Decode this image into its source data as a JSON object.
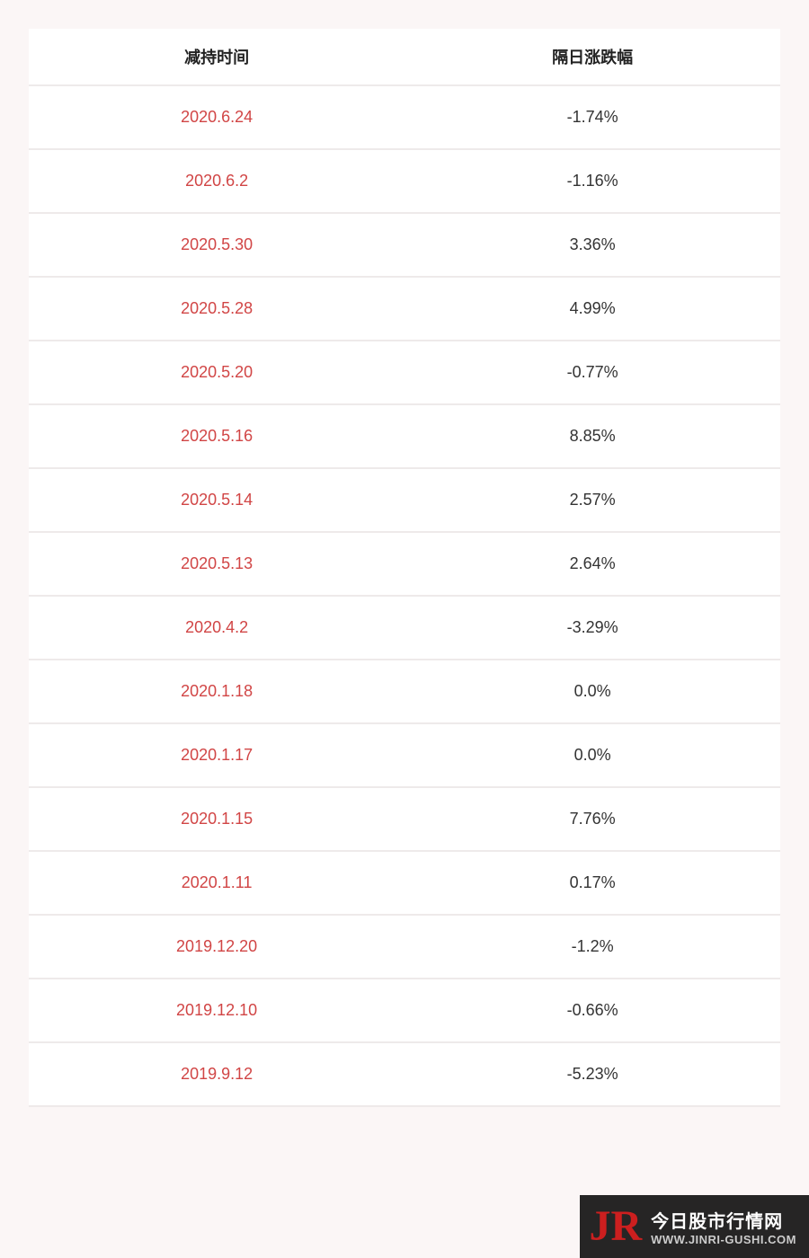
{
  "table": {
    "columns": [
      "减持时间",
      "隔日涨跌幅"
    ],
    "rows": [
      [
        "2020.6.24",
        "-1.74%"
      ],
      [
        "2020.6.2",
        "-1.16%"
      ],
      [
        "2020.5.30",
        "3.36%"
      ],
      [
        "2020.5.28",
        "4.99%"
      ],
      [
        "2020.5.20",
        "-0.77%"
      ],
      [
        "2020.5.16",
        "8.85%"
      ],
      [
        "2020.5.14",
        "2.57%"
      ],
      [
        "2020.5.13",
        "2.64%"
      ],
      [
        "2020.4.2",
        "-3.29%"
      ],
      [
        "2020.1.18",
        "0.0%"
      ],
      [
        "2020.1.17",
        "0.0%"
      ],
      [
        "2020.1.15",
        "7.76%"
      ],
      [
        "2020.1.11",
        "0.17%"
      ],
      [
        "2019.12.20",
        "-1.2%"
      ],
      [
        "2019.12.10",
        "-0.66%"
      ],
      [
        "2019.9.12",
        "-5.23%"
      ]
    ],
    "styling": {
      "background_color": "#fbf6f6",
      "cell_bg_color": "#ffffff",
      "header_text_color": "#222222",
      "date_text_color": "#d14545",
      "value_text_color": "#333333",
      "border_color": "#eeeaea",
      "header_fontsize": 18,
      "cell_fontsize": 18,
      "header_fontweight": "bold",
      "col_widths": [
        "50%",
        "50%"
      ],
      "text_align": "center"
    }
  },
  "watermark": {
    "logo_text": "JR",
    "logo_color": "#cc1f1f",
    "title": "今日股市行情网",
    "url": "WWW.JINRI-GUSHI.COM",
    "bg_color": "rgba(0,0,0,0.85)",
    "title_color": "#ffffff",
    "url_color": "#cccccc"
  }
}
